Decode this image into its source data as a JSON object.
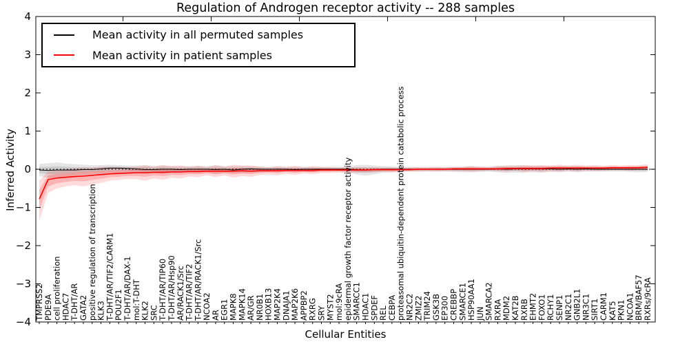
{
  "chart_data": {
    "type": "line",
    "title": "Regulation of Androgen receptor activity -- 288 samples",
    "xlabel": "Cellular Entities",
    "ylabel": "Inferred Activity",
    "ylim": [
      -4,
      4
    ],
    "yticks": [
      4,
      3,
      2,
      1,
      0,
      -1,
      -2,
      -3,
      -4
    ],
    "grid": false,
    "zero_line_style": "dotted",
    "legend_position": "upper-left",
    "categories": [
      "TMPRSS2",
      "PDE9A",
      "cell proliferation",
      "HDAC7",
      "T-DHT/AR",
      "GATA2",
      "positive regulation of transcription",
      "KLK3",
      "T-DHT/AR/TIF2/CARM1",
      "POU2F1",
      "T-DHT/AR/DAX-1",
      "mol:T-DHT",
      "KLK2",
      "SRC",
      "T-DHT/AR/TIP60",
      "T-DHT/AR/Hsp90",
      "AR/RACK1/Src",
      "T-DHT/AR/TIF2",
      "T-DHT/AR/RACK1/Src",
      "NCOA2",
      "AR",
      "EGR1",
      "MAPK8",
      "MAPK14",
      "AR/GR",
      "NR0B1",
      "HOXB13",
      "MAP2K4",
      "DNAJA1",
      "MAP2K6",
      "APPBP2",
      "RXRG",
      "SRY",
      "MYST2",
      "mol:9cRA",
      "epidermal growth factor receptor activity",
      "SMARCC1",
      "HDAC1",
      "SPDEF",
      "REL",
      "CEBPA",
      "proteasomal ubiquitin-dependent protein catabolic process",
      "NR2C2",
      "ZMIZ2",
      "TRIM24",
      "GSK3B",
      "EP300",
      "CREBBP",
      "SMARCE1",
      "HSP90AA1",
      "JUN",
      "SMARCA2",
      "RXRA",
      "MDM2",
      "KAT2B",
      "RXRB",
      "EHMT2",
      "FOXO1",
      "RCHY1",
      "SENP1",
      "NR2C1",
      "GNB2L1",
      "NR3C1",
      "SIRT1",
      "CARM1",
      "KAT5",
      "PKN1",
      "NCOA1",
      "BRM/BAF57",
      "RXRs/9cRA"
    ],
    "series": [
      {
        "name": "Mean activity in all permuted samples",
        "color": "#000000",
        "band_color": "#000000",
        "band_alpha_outer": 0.1,
        "band_alpha_inner": 0.1,
        "line_width": 1,
        "values": [
          -0.02,
          -0.03,
          -0.02,
          -0.02,
          -0.02,
          -0.01,
          -0.01,
          0.01,
          0.03,
          0.03,
          0.02,
          0.01,
          -0.01,
          -0.01,
          0.0,
          0.0,
          -0.01,
          0.0,
          0.0,
          0.0,
          -0.01,
          0.0,
          -0.02,
          0.0,
          0.01,
          0.0,
          0.0,
          0.0,
          0.0,
          -0.01,
          0.0,
          0.0,
          0.0,
          0.0,
          0.0,
          0.0,
          -0.01,
          -0.02,
          -0.01,
          0.0,
          0.0,
          0.0,
          0.0,
          0.0,
          0.0,
          0.0,
          0.0,
          0.0,
          0.0,
          0.0,
          0.0,
          0.0,
          0.01,
          0.0,
          0.01,
          0.01,
          0.01,
          0.01,
          0.01,
          0.0,
          0.01,
          0.0,
          0.01,
          0.0,
          0.0,
          0.0,
          0.0,
          0.0,
          0.0,
          0.0
        ],
        "band_lo": [
          -0.18,
          -0.22,
          -0.24,
          -0.2,
          -0.16,
          -0.15,
          -0.13,
          -0.12,
          -0.1,
          -0.1,
          -0.1,
          -0.1,
          -0.12,
          -0.1,
          -0.12,
          -0.1,
          -0.1,
          -0.08,
          -0.1,
          -0.08,
          -0.12,
          -0.09,
          -0.1,
          -0.1,
          -0.08,
          -0.08,
          -0.07,
          -0.08,
          -0.06,
          -0.08,
          -0.06,
          -0.08,
          -0.06,
          -0.06,
          -0.06,
          -0.08,
          -0.14,
          -0.17,
          -0.13,
          -0.09,
          -0.08,
          -0.07,
          -0.06,
          -0.06,
          -0.06,
          -0.06,
          -0.06,
          -0.07,
          -0.08,
          -0.08,
          -0.07,
          -0.06,
          -0.08,
          -0.1,
          -0.09,
          -0.09,
          -0.08,
          -0.09,
          -0.07,
          -0.08,
          -0.06,
          -0.08,
          -0.06,
          -0.06,
          -0.06,
          -0.06,
          -0.06,
          -0.07,
          -0.08,
          -0.07
        ],
        "band_hi": [
          0.14,
          0.16,
          0.18,
          0.15,
          0.13,
          0.12,
          0.11,
          0.11,
          0.12,
          0.11,
          0.1,
          0.1,
          0.11,
          0.09,
          0.1,
          0.08,
          0.08,
          0.08,
          0.09,
          0.08,
          0.1,
          0.08,
          0.08,
          0.08,
          0.08,
          0.07,
          0.06,
          0.07,
          0.06,
          0.07,
          0.06,
          0.06,
          0.06,
          0.06,
          0.06,
          0.07,
          0.11,
          0.12,
          0.1,
          0.08,
          0.07,
          0.06,
          0.06,
          0.06,
          0.06,
          0.06,
          0.06,
          0.06,
          0.07,
          0.08,
          0.06,
          0.06,
          0.09,
          0.1,
          0.11,
          0.1,
          0.09,
          0.09,
          0.08,
          0.08,
          0.08,
          0.08,
          0.07,
          0.06,
          0.06,
          0.07,
          0.06,
          0.07,
          0.08,
          0.07
        ]
      },
      {
        "name": "Mean activity in patient samples",
        "color": "#ff0000",
        "band_color": "#ff0000",
        "band_alpha_outer": 0.14,
        "band_alpha_inner": 0.18,
        "line_width": 1.6,
        "values": [
          -0.78,
          -0.27,
          -0.23,
          -0.21,
          -0.19,
          -0.18,
          -0.16,
          -0.14,
          -0.12,
          -0.11,
          -0.1,
          -0.09,
          -0.09,
          -0.08,
          -0.08,
          -0.07,
          -0.07,
          -0.06,
          -0.06,
          -0.05,
          -0.05,
          -0.05,
          -0.05,
          -0.04,
          -0.05,
          -0.04,
          -0.04,
          -0.04,
          -0.03,
          -0.03,
          -0.03,
          -0.03,
          -0.02,
          -0.02,
          -0.02,
          -0.02,
          -0.02,
          -0.02,
          -0.01,
          -0.01,
          -0.01,
          -0.01,
          -0.01,
          0.0,
          0.0,
          0.0,
          0.0,
          0.01,
          0.01,
          0.01,
          0.01,
          0.01,
          0.01,
          0.02,
          0.02,
          0.02,
          0.02,
          0.02,
          0.03,
          0.03,
          0.03,
          0.03,
          0.03,
          0.03,
          0.03,
          0.04,
          0.04,
          0.04,
          0.04,
          0.05
        ],
        "band_lo": [
          -1.35,
          -0.62,
          -0.5,
          -0.45,
          -0.42,
          -0.45,
          -0.4,
          -0.36,
          -0.3,
          -0.28,
          -0.26,
          -0.26,
          -0.3,
          -0.24,
          -0.28,
          -0.22,
          -0.24,
          -0.19,
          -0.21,
          -0.16,
          -0.21,
          -0.16,
          -0.22,
          -0.18,
          -0.2,
          -0.15,
          -0.13,
          -0.16,
          -0.12,
          -0.15,
          -0.11,
          -0.13,
          -0.1,
          -0.1,
          -0.09,
          -0.1,
          -0.09,
          -0.08,
          -0.08,
          -0.07,
          -0.08,
          -0.06,
          -0.06,
          -0.06,
          -0.05,
          -0.06,
          -0.05,
          -0.05,
          -0.05,
          -0.06,
          -0.05,
          -0.04,
          -0.05,
          -0.06,
          -0.04,
          -0.07,
          -0.05,
          -0.07,
          -0.05,
          -0.06,
          -0.04,
          -0.06,
          -0.04,
          -0.05,
          -0.04,
          -0.03,
          -0.03,
          -0.04,
          -0.02,
          -0.02
        ],
        "band_hi": [
          -0.3,
          -0.06,
          -0.03,
          0.0,
          0.02,
          0.04,
          0.04,
          0.06,
          0.05,
          0.05,
          0.05,
          0.07,
          0.1,
          0.06,
          0.11,
          0.08,
          0.1,
          0.06,
          0.09,
          0.05,
          0.11,
          0.06,
          0.12,
          0.1,
          0.1,
          0.07,
          0.05,
          0.08,
          0.06,
          0.09,
          0.05,
          0.08,
          0.06,
          0.06,
          0.05,
          0.06,
          0.05,
          0.05,
          0.05,
          0.04,
          0.05,
          0.04,
          0.05,
          0.05,
          0.05,
          0.06,
          0.05,
          0.06,
          0.06,
          0.08,
          0.07,
          0.06,
          0.08,
          0.09,
          0.08,
          0.11,
          0.1,
          0.11,
          0.1,
          0.12,
          0.1,
          0.12,
          0.1,
          0.11,
          0.09,
          0.11,
          0.1,
          0.11,
          0.11,
          0.13
        ]
      }
    ]
  }
}
